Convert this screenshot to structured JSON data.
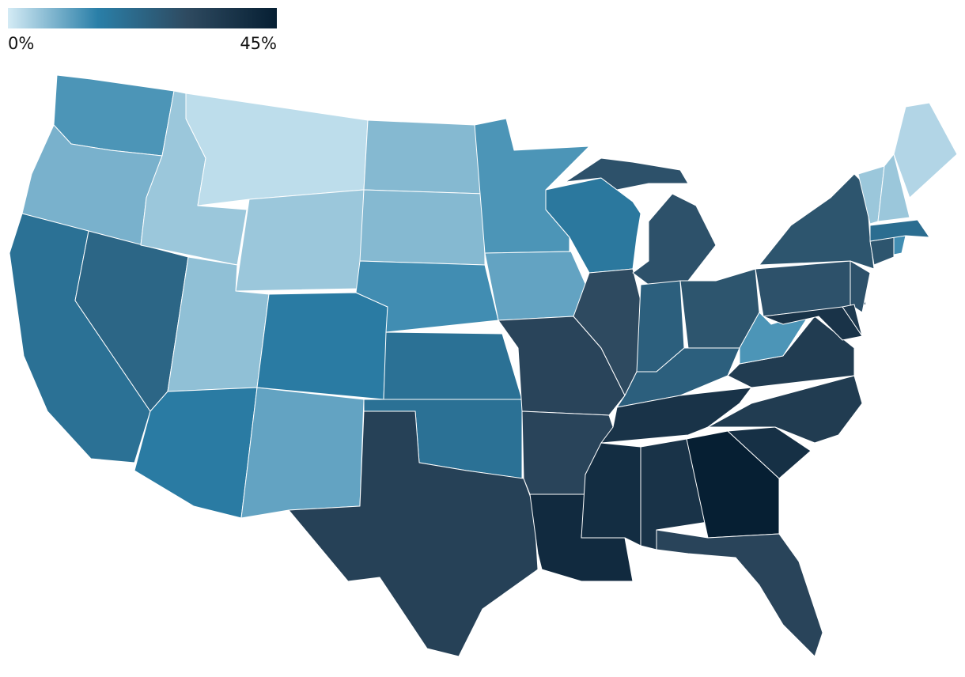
{
  "chart_data": {
    "type": "choropleth",
    "colorscale": [
      "#d4ebf5",
      "#2a7fa8",
      "#2e4a60",
      "#061f33"
    ],
    "scale": [
      {
        "value": 0,
        "label": "0%"
      },
      {
        "value": 45,
        "label": "45%"
      }
    ],
    "values": [
      12,
      8,
      19,
      22,
      5,
      2,
      5,
      6,
      16,
      16,
      10,
      7,
      7,
      13,
      19,
      19,
      33,
      12,
      10,
      32,
      32,
      41,
      17,
      30,
      28,
      24,
      27,
      24,
      38,
      40,
      38,
      45,
      32,
      39,
      35,
      35,
      12,
      28,
      27,
      28,
      38,
      36,
      27,
      13,
      20,
      5,
      5,
      3
    ]
  }
}
